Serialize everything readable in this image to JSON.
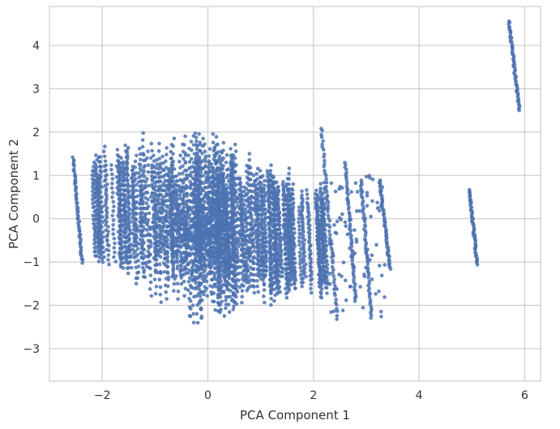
{
  "chart_data": {
    "type": "scatter",
    "title": "",
    "xlabel": "PCA Component 1",
    "ylabel": "PCA Component 2",
    "xlim": [
      -3.0,
      6.3
    ],
    "ylim": [
      -3.75,
      4.9
    ],
    "xticks": [
      -2,
      0,
      2,
      4,
      6
    ],
    "yticks": [
      -3,
      -2,
      -1,
      0,
      1,
      2,
      3,
      4
    ],
    "xtick_labels": [
      "−2",
      "0",
      "2",
      "4",
      "6"
    ],
    "ytick_labels": [
      "−3",
      "−2",
      "−1",
      "0",
      "1",
      "2",
      "3",
      "4"
    ],
    "grid": true,
    "point_color": "#4c72b0",
    "clusters": [
      {
        "description": "main dense cloud",
        "x_range": [
          -2.2,
          2.2
        ],
        "y_range": [
          -3.1,
          2.4
        ],
        "n": 5200
      },
      {
        "description": "left edge streak",
        "x_range": [
          -2.6,
          -2.4
        ],
        "y_range": [
          -1.0,
          1.4
        ],
        "n": 160
      },
      {
        "description": "right-middle streaks",
        "x_range": [
          2.2,
          3.45
        ],
        "y_range": [
          -2.6,
          1.4
        ],
        "n": 700
      },
      {
        "description": "outlier streak near x=5",
        "x_range": [
          4.95,
          5.1
        ],
        "y_range": [
          -1.05,
          0.65
        ],
        "n": 90
      },
      {
        "description": "outlier streak near x=5.8",
        "x_range": [
          5.7,
          5.9
        ],
        "y_range": [
          2.5,
          4.55
        ],
        "n": 120
      }
    ],
    "streaks": [
      {
        "x_start": -2.55,
        "y_start": 1.4,
        "x_end": -2.38,
        "y_end": -1.0
      },
      {
        "x_start": 2.15,
        "y_start": 2.1,
        "x_end": 2.45,
        "y_end": -2.3
      },
      {
        "x_start": 2.6,
        "y_start": 1.3,
        "x_end": 2.8,
        "y_end": -1.9
      },
      {
        "x_start": 2.9,
        "y_start": 0.9,
        "x_end": 3.1,
        "y_end": -2.3
      },
      {
        "x_start": 3.25,
        "y_start": 0.9,
        "x_end": 3.45,
        "y_end": -1.15
      },
      {
        "x_start": 4.95,
        "y_start": 0.65,
        "x_end": 5.1,
        "y_end": -1.05
      },
      {
        "x_start": 5.7,
        "y_start": 4.55,
        "x_end": 5.9,
        "y_end": 2.5
      }
    ]
  }
}
